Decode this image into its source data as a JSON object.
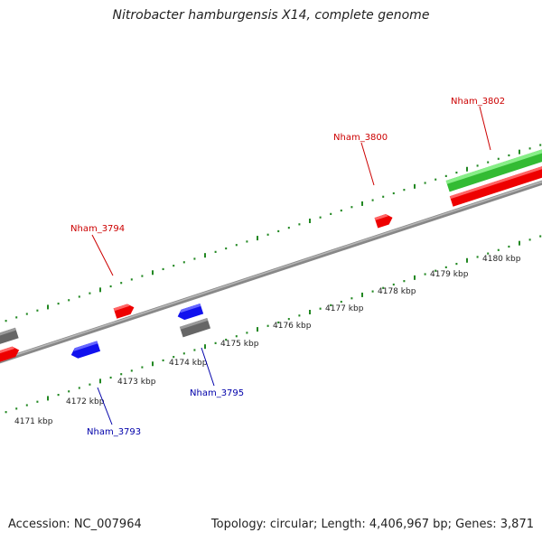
{
  "title": "Nitrobacter hamburgensis X14, complete genome",
  "footer": {
    "accession": "Accession: NC_007964",
    "info": "Topology: circular; Length: 4,406,967 bp; Genes: 3,871"
  },
  "colors": {
    "forward_gene": "#ff0000",
    "reverse_gene": "#0000ff",
    "rna_gene": "#33cc33",
    "other_feature": "#666666",
    "backbone": "#777777",
    "ticks": "#228822",
    "forward_label": "#cc0000",
    "reverse_label": "#0000aa"
  },
  "scale": {
    "kbp_labels": [
      "4171 kbp",
      "4172 kbp",
      "4173 kbp",
      "4174 kbp",
      "4175 kbp",
      "4176 kbp",
      "4177 kbp",
      "4178 kbp",
      "4179 kbp",
      "4180 kbp"
    ]
  },
  "gene_labels": {
    "forward": [
      "Nham_3794",
      "Nham_3800",
      "Nham_3802"
    ],
    "reverse": [
      "Nham_3793",
      "Nham_3795"
    ]
  }
}
